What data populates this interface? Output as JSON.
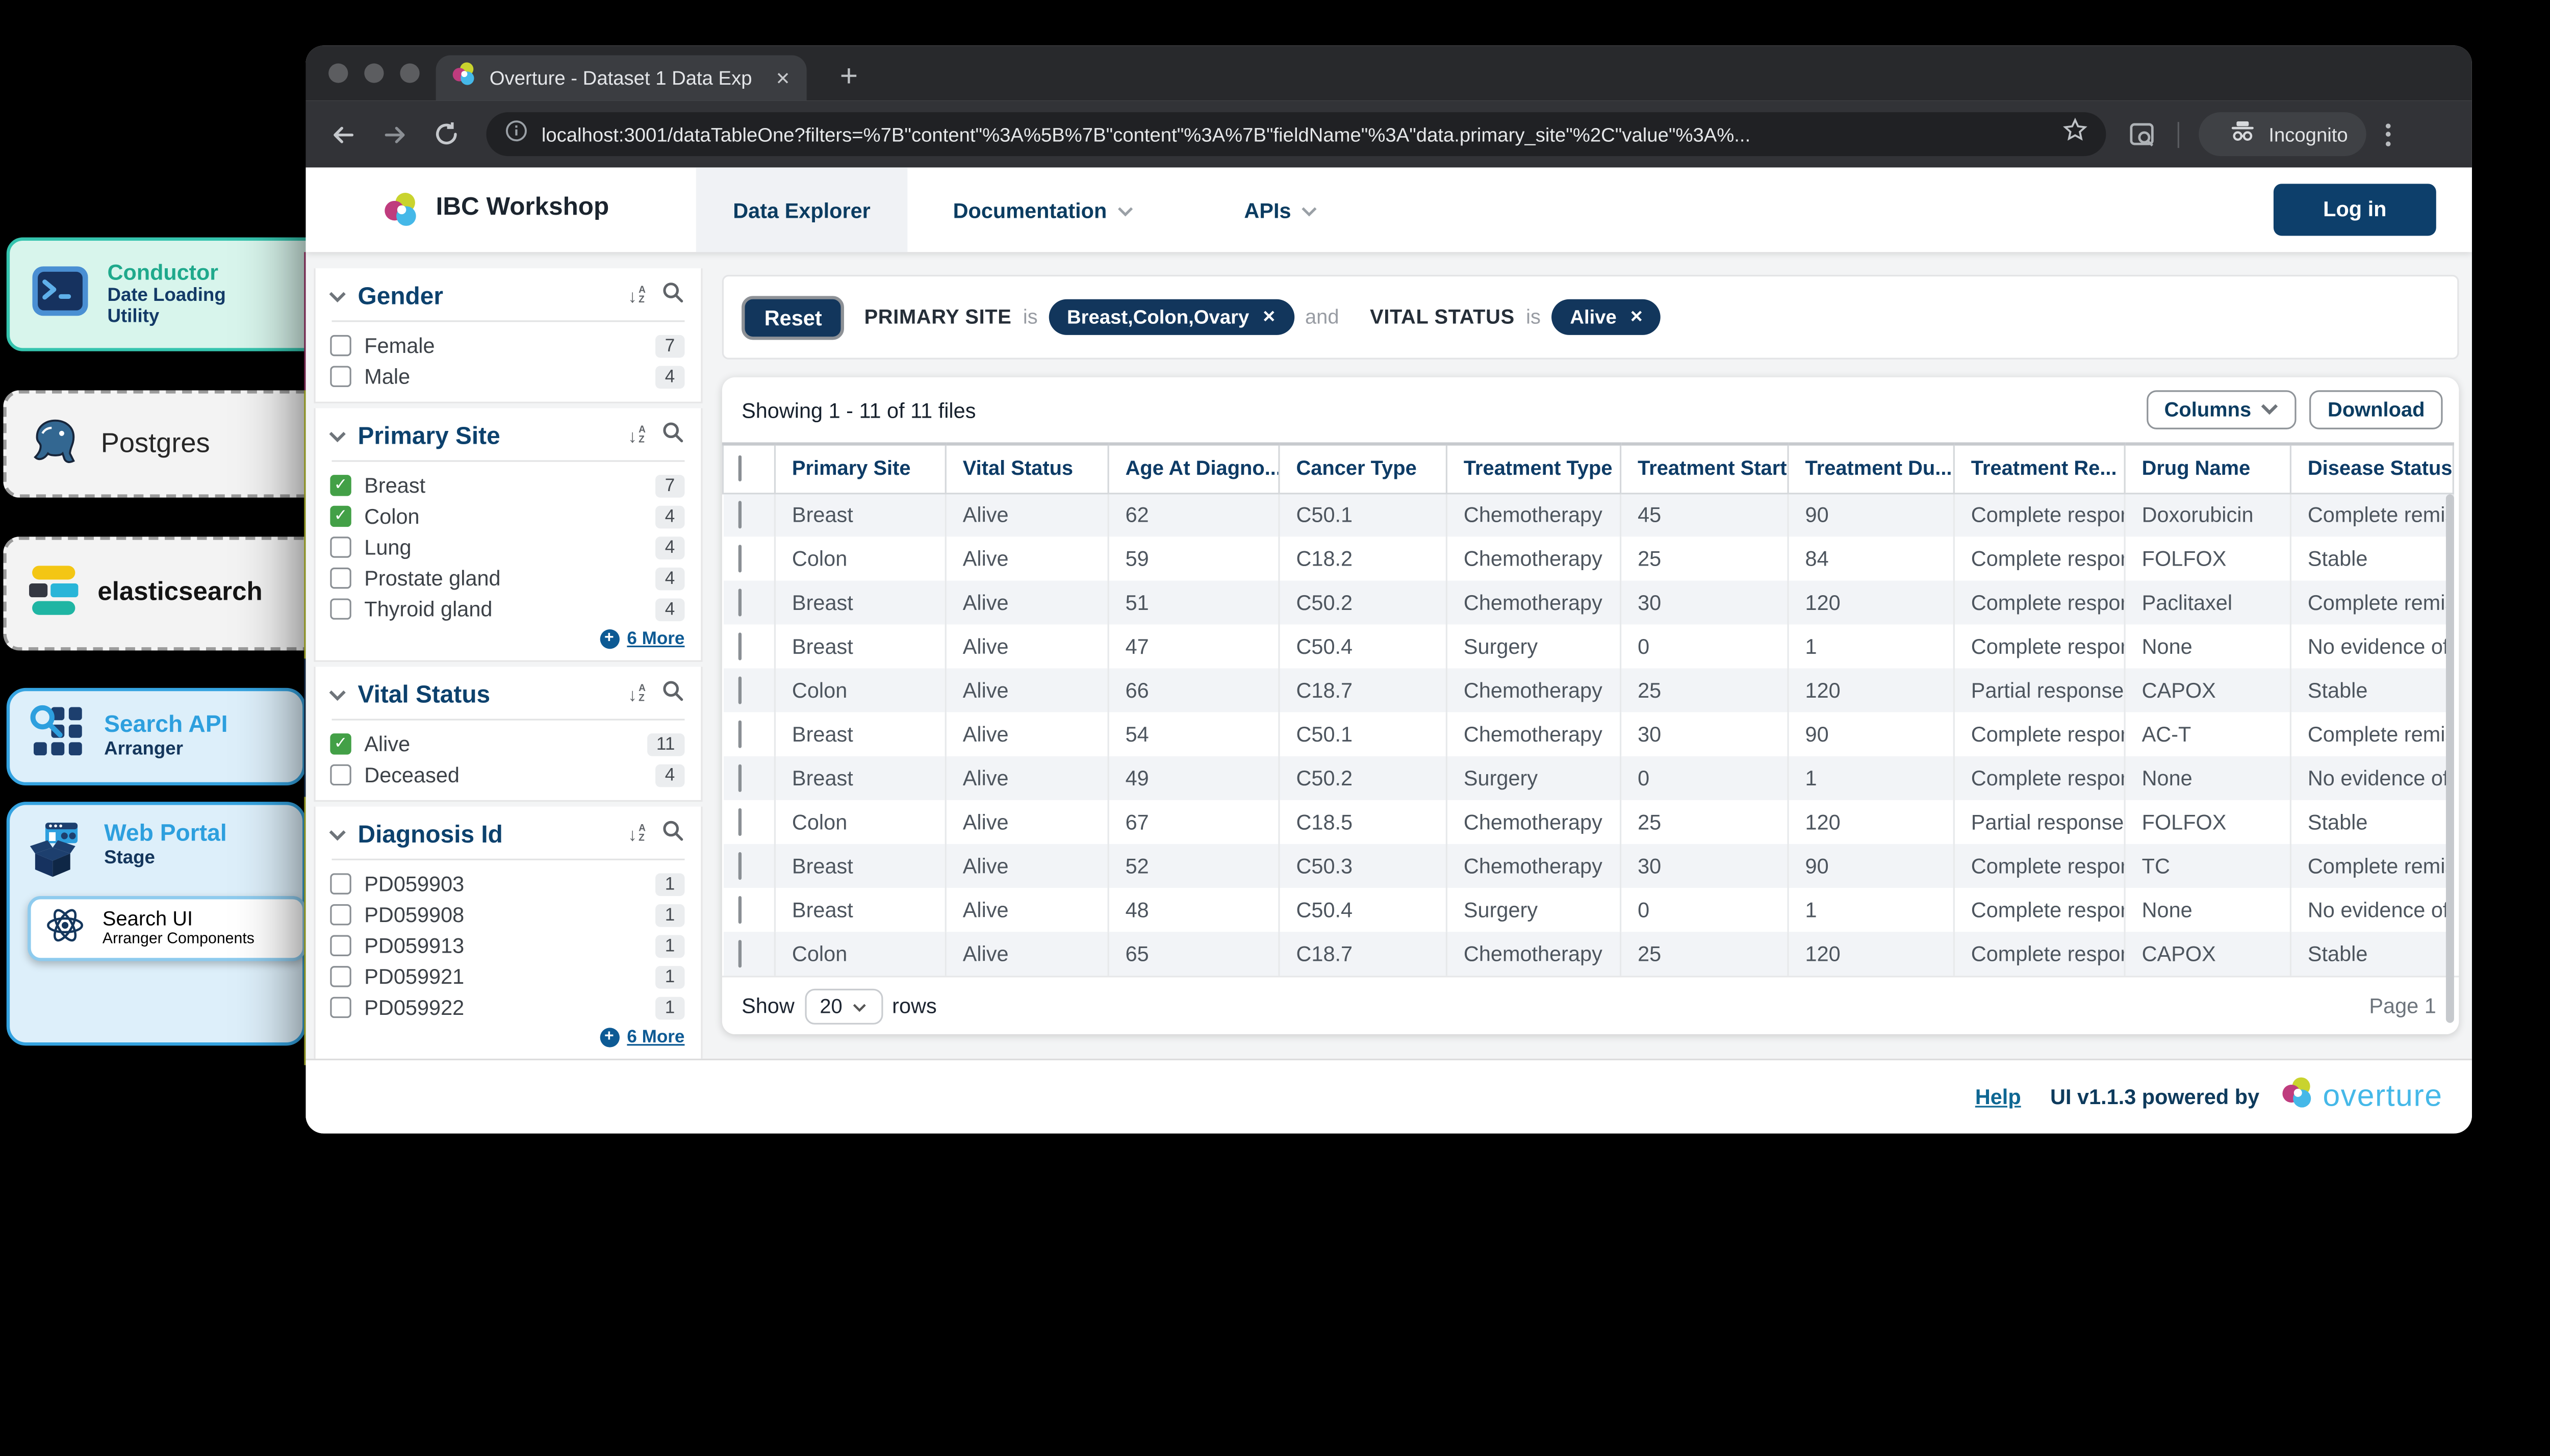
{
  "background_cards": {
    "conductor": {
      "title": "Conductor",
      "subtitle": "Date Loading Utility"
    },
    "postgres": {
      "title": "Postgres"
    },
    "elasticsearch": {
      "title": "elasticsearch"
    },
    "search_api": {
      "title": "Search API",
      "subtitle": "Arranger"
    },
    "web_portal": {
      "title": "Web Portal",
      "subtitle": "Stage"
    },
    "search_ui": {
      "title": "Search UI",
      "subtitle": "Arranger Components"
    }
  },
  "browser": {
    "tab_title": "Overture - Dataset 1 Data Exp",
    "url": "localhost:3001/dataTableOne?filters=%7B\"content\"%3A%5B%7B\"content\"%3A%7B\"fieldName\"%3A\"data.primary_site\"%2C\"value\"%3A%...",
    "incognito_label": "Incognito"
  },
  "app": {
    "brand": "IBC Workshop",
    "nav": {
      "data_explorer": "Data Explorer",
      "documentation": "Documentation",
      "apis": "APIs"
    },
    "login": "Log in"
  },
  "facets": [
    {
      "title": "Gender",
      "items": [
        {
          "label": "Female",
          "count": "7",
          "checked": false
        },
        {
          "label": "Male",
          "count": "4",
          "checked": false
        }
      ]
    },
    {
      "title": "Primary Site",
      "more": "6 More",
      "items": [
        {
          "label": "Breast",
          "count": "7",
          "checked": true
        },
        {
          "label": "Colon",
          "count": "4",
          "checked": true
        },
        {
          "label": "Lung",
          "count": "4",
          "checked": false
        },
        {
          "label": "Prostate gland",
          "count": "4",
          "checked": false
        },
        {
          "label": "Thyroid gland",
          "count": "4",
          "checked": false
        }
      ]
    },
    {
      "title": "Vital Status",
      "items": [
        {
          "label": "Alive",
          "count": "11",
          "checked": true
        },
        {
          "label": "Deceased",
          "count": "4",
          "checked": false
        }
      ]
    },
    {
      "title": "Diagnosis Id",
      "more": "6 More",
      "items": [
        {
          "label": "PD059903",
          "count": "1",
          "checked": false
        },
        {
          "label": "PD059908",
          "count": "1",
          "checked": false
        },
        {
          "label": "PD059913",
          "count": "1",
          "checked": false
        },
        {
          "label": "PD059921",
          "count": "1",
          "checked": false
        },
        {
          "label": "PD059922",
          "count": "1",
          "checked": false
        }
      ]
    }
  ],
  "filters": {
    "reset": "Reset",
    "clauses": [
      {
        "conj": "",
        "field": "PRIMARY SITE",
        "op": "is",
        "value": "Breast,Colon,Ovary"
      },
      {
        "conj": "and",
        "field": "VITAL STATUS",
        "op": "is",
        "value": "Alive"
      }
    ]
  },
  "table": {
    "summary": "Showing 1 - 11 of 11 files",
    "columns_button": "Columns",
    "download_button": "Download",
    "headers": [
      "Primary Site",
      "Vital Status",
      "Age At Diagno...",
      "Cancer Type",
      "Treatment Type",
      "Treatment Start",
      "Treatment Du...",
      "Treatment Re...",
      "Drug Name",
      "Disease Status"
    ],
    "rows": [
      [
        "Breast",
        "Alive",
        "62",
        "C50.1",
        "Chemotherapy",
        "45",
        "90",
        "Complete response",
        "Doxorubicin",
        "Complete remission"
      ],
      [
        "Colon",
        "Alive",
        "59",
        "C18.2",
        "Chemotherapy",
        "25",
        "84",
        "Complete response",
        "FOLFOX",
        "Stable"
      ],
      [
        "Breast",
        "Alive",
        "51",
        "C50.2",
        "Chemotherapy",
        "30",
        "120",
        "Complete response",
        "Paclitaxel",
        "Complete remission"
      ],
      [
        "Breast",
        "Alive",
        "47",
        "C50.4",
        "Surgery",
        "0",
        "1",
        "Complete response",
        "None",
        "No evidence of disease"
      ],
      [
        "Colon",
        "Alive",
        "66",
        "C18.7",
        "Chemotherapy",
        "25",
        "120",
        "Partial response",
        "CAPOX",
        "Stable"
      ],
      [
        "Breast",
        "Alive",
        "54",
        "C50.1",
        "Chemotherapy",
        "30",
        "90",
        "Complete response",
        "AC-T",
        "Complete remission"
      ],
      [
        "Breast",
        "Alive",
        "49",
        "C50.2",
        "Surgery",
        "0",
        "1",
        "Complete response",
        "None",
        "No evidence of disease"
      ],
      [
        "Colon",
        "Alive",
        "67",
        "C18.5",
        "Chemotherapy",
        "25",
        "120",
        "Partial response",
        "FOLFOX",
        "Stable"
      ],
      [
        "Breast",
        "Alive",
        "52",
        "C50.3",
        "Chemotherapy",
        "30",
        "90",
        "Complete response",
        "TC",
        "Complete remission"
      ],
      [
        "Breast",
        "Alive",
        "48",
        "C50.4",
        "Surgery",
        "0",
        "1",
        "Complete response",
        "None",
        "No evidence of disease"
      ],
      [
        "Colon",
        "Alive",
        "65",
        "C18.7",
        "Chemotherapy",
        "25",
        "120",
        "Complete response",
        "CAPOX",
        "Stable"
      ]
    ],
    "show_label": "Show",
    "page_size": "20",
    "rows_label": "rows",
    "page_label": "Page 1"
  },
  "footer": {
    "help": "Help",
    "powered": "UI v1.1.3 powered by",
    "brand": "overture"
  }
}
